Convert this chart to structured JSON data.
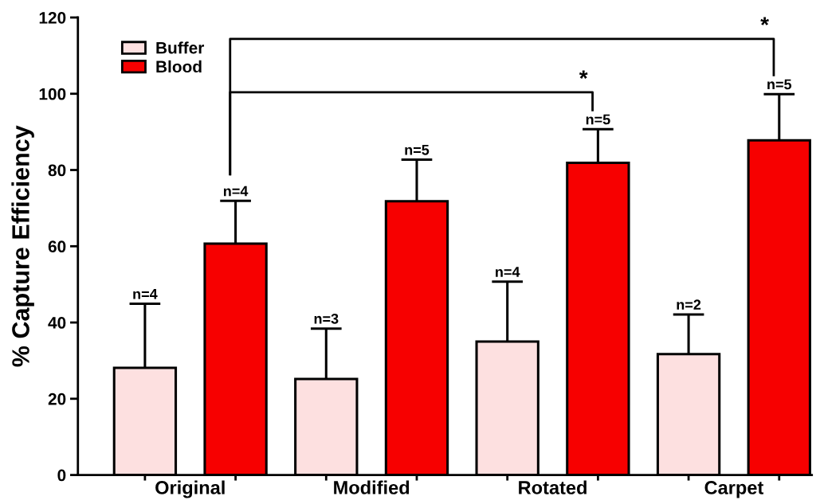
{
  "chart_data": {
    "type": "bar",
    "ylabel": "% Capture Efficiency",
    "categories": [
      "Original",
      "Modified",
      "Rotated",
      "Carpet"
    ],
    "series": [
      {
        "name": "Buffer",
        "color": "#fde0e0",
        "values": [
          28.1,
          25.2,
          35.0,
          31.7
        ],
        "errors": [
          [
            28.1,
            44.9
          ],
          [
            25.2,
            38.4
          ],
          [
            35.0,
            50.7
          ],
          [
            31.7,
            42.1
          ]
        ]
      },
      {
        "name": "Blood",
        "color": "#f70000",
        "values": [
          60.7,
          71.8,
          81.9,
          87.8
        ],
        "errors": [
          [
            60.7,
            71.9
          ],
          [
            71.8,
            82.7
          ],
          [
            81.9,
            90.7
          ],
          [
            87.8,
            99.9
          ]
        ]
      }
    ],
    "ylim": [
      0,
      120
    ],
    "yticks": [
      0,
      20,
      40,
      60,
      80,
      100,
      120
    ],
    "grid": false,
    "legend": "top left",
    "annotations": [
      "n=4",
      "n=3",
      "n=4",
      "n=2",
      "n=4",
      "n=5",
      "n=5",
      "n=5",
      "*",
      "*"
    ]
  }
}
